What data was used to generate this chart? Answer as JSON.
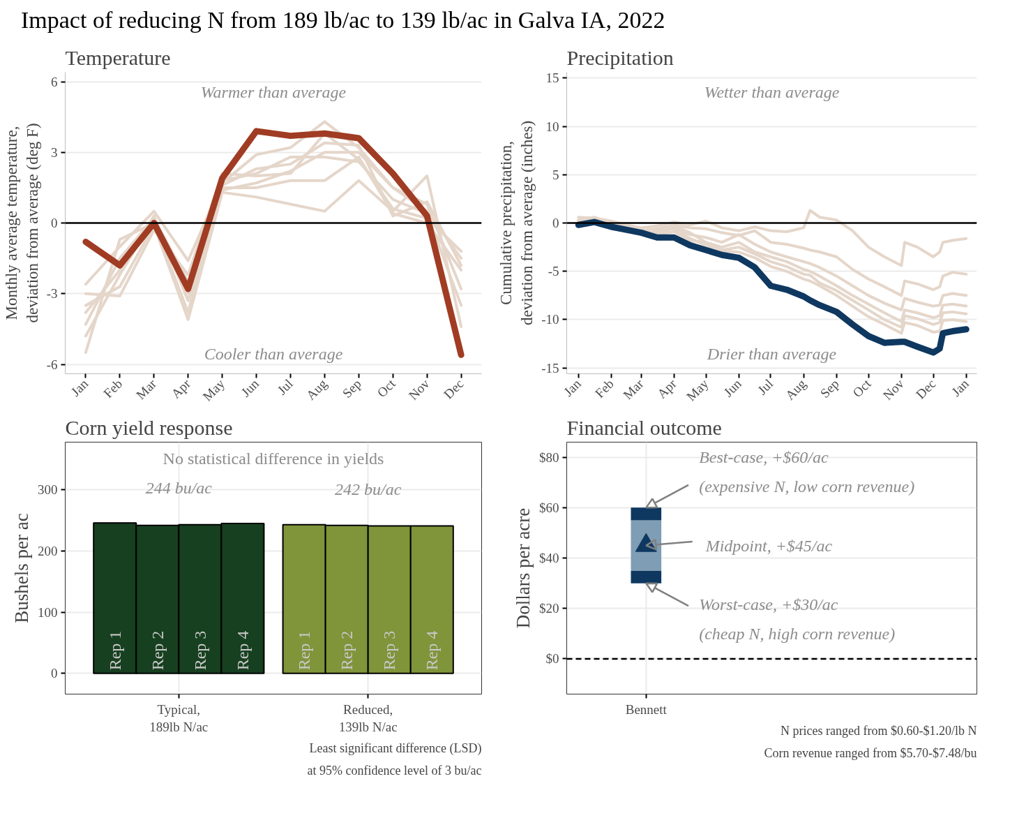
{
  "chart_data": [
    {
      "type": "line",
      "title": "Impact of reducing N from 189 lb/ac to 139 lb/ac in Galva IA, 2022",
      "subtitle": "Temperature",
      "ylabel": "Monthly average temperature,\ndeviation from average (deg F)",
      "categories": [
        "Jan",
        "Feb",
        "Mar",
        "Apr",
        "May",
        "Jun",
        "Jul",
        "Aug",
        "Sep",
        "Oct",
        "Nov",
        "Dec"
      ],
      "series": [
        {
          "color": "#e5d6ca",
          "values": [
            -2.6,
            -1.0,
            0.5,
            -1.6,
            1.7,
            2.9,
            3.2,
            4.3,
            3.2,
            1.5,
            0.5,
            -1.5
          ]
        },
        {
          "color": "#e5d6ca",
          "values": [
            -3.5,
            -2.7,
            -0.1,
            -4.1,
            1.3,
            1.1,
            0.8,
            0.5,
            1.8,
            0.5,
            2.0,
            -4.4
          ]
        },
        {
          "color": "#e5d6ca",
          "values": [
            -4.8,
            -2.2,
            0.2,
            -2.5,
            1.5,
            1.5,
            1.8,
            1.8,
            2.8,
            0.4,
            0.0,
            -2.0
          ]
        },
        {
          "color": "#e5d6ca",
          "values": [
            -5.5,
            -0.7,
            0.0,
            -3.8,
            1.8,
            2.1,
            2.8,
            2.8,
            2.6,
            1.0,
            0.4,
            -3.5
          ]
        },
        {
          "color": "#e5d6ca",
          "values": [
            -3.0,
            -3.1,
            -0.3,
            -2.2,
            2.1,
            2.0,
            2.1,
            3.8,
            2.7,
            0.6,
            0.2,
            -1.2
          ]
        },
        {
          "color": "#e5d6ca",
          "values": [
            -4.3,
            -1.5,
            0.2,
            -3.0,
            1.4,
            1.7,
            2.2,
            3.0,
            3.0,
            1.5,
            0.8,
            -2.8
          ]
        },
        {
          "color": "#e5d6ca",
          "values": [
            -3.8,
            -2.0,
            0.3,
            -3.3,
            1.6,
            2.3,
            2.5,
            3.4,
            3.3,
            0.3,
            0.9,
            -1.8
          ]
        },
        {
          "color": "#a03c23",
          "values": [
            -0.8,
            -1.8,
            0.0,
            -2.8,
            1.9,
            3.9,
            3.7,
            3.8,
            3.6,
            2.1,
            0.3,
            -5.6
          ]
        }
      ],
      "ylim": [
        -6.4,
        6.4
      ],
      "yticks": [
        -6,
        -3,
        0,
        3,
        6
      ],
      "grid": "y",
      "ref_lines": [
        {
          "axis": "y",
          "value": 0,
          "color": "#000000"
        }
      ],
      "annotations": [
        "Warmer than average",
        "Cooler than average"
      ]
    },
    {
      "type": "line",
      "title": "Precipitation",
      "ylabel": "Cumulative precipitation,\ndeviation from average (inches)",
      "x": [
        "2022-01-01",
        "2022-01-16",
        "2022-02-01",
        "2022-02-15",
        "2022-03-01",
        "2022-03-16",
        "2022-04-01",
        "2022-04-16",
        "2022-05-01",
        "2022-05-16",
        "2022-06-01",
        "2022-06-16",
        "2022-07-01",
        "2022-07-16",
        "2022-08-01",
        "2022-08-07",
        "2022-08-16",
        "2022-09-01",
        "2022-09-16",
        "2022-10-01",
        "2022-10-16",
        "2022-11-01",
        "2022-11-04",
        "2022-11-16",
        "2022-12-01",
        "2022-12-07",
        "2022-12-10",
        "2022-12-19",
        "2023-01-01"
      ],
      "series": [
        {
          "color": "#e5d6ca",
          "values": [
            0.6,
            0.5,
            0.2,
            -0.2,
            -0.5,
            -0.3,
            0.1,
            -0.2,
            0.2,
            -0.5,
            -0.8,
            -0.4,
            -0.8,
            -0.9,
            -0.5,
            1.3,
            0.6,
            0.3,
            -0.8,
            -2.5,
            -3.5,
            -4.4,
            -2.0,
            -2.5,
            -3.5,
            -3.0,
            -2.0,
            -1.8,
            -1.6
          ]
        },
        {
          "color": "#e5d6ca",
          "values": [
            0.3,
            0.6,
            0.0,
            -0.5,
            -0.8,
            -0.6,
            -0.2,
            -0.5,
            -0.6,
            -1.0,
            -1.3,
            -0.8,
            -2.0,
            -2.2,
            -2.6,
            -2.8,
            -3.0,
            -3.5,
            -4.8,
            -5.8,
            -6.6,
            -7.5,
            -6.0,
            -6.3,
            -6.9,
            -6.6,
            -5.5,
            -5.1,
            -5.3
          ]
        },
        {
          "color": "#e5d6ca",
          "values": [
            0.2,
            0.3,
            -0.3,
            -0.6,
            -0.9,
            -1.2,
            -0.5,
            -1.2,
            -1.5,
            -2.0,
            -1.2,
            -2.2,
            -3.0,
            -3.5,
            -4.0,
            -4.2,
            -4.6,
            -5.5,
            -6.5,
            -7.5,
            -8.3,
            -9.0,
            -7.8,
            -8.2,
            -8.6,
            -8.5,
            -7.5,
            -7.3,
            -7.5
          ]
        },
        {
          "color": "#e5d6ca",
          "values": [
            0.1,
            0.2,
            -0.4,
            -0.8,
            -1.0,
            -1.0,
            -0.3,
            -1.0,
            -2.0,
            -2.5,
            -2.0,
            -3.0,
            -3.5,
            -4.0,
            -4.8,
            -5.0,
            -5.5,
            -6.5,
            -7.5,
            -8.4,
            -9.3,
            -10.2,
            -9.0,
            -9.3,
            -9.8,
            -9.6,
            -8.5,
            -8.4,
            -8.6
          ]
        },
        {
          "color": "#e5d6ca",
          "values": [
            0.3,
            0.1,
            -0.5,
            -0.9,
            -1.2,
            -0.8,
            -0.6,
            -1.6,
            -2.3,
            -2.8,
            -2.5,
            -3.2,
            -4.0,
            -4.5,
            -5.3,
            -5.4,
            -6.2,
            -7.0,
            -8.0,
            -9.0,
            -10.0,
            -10.8,
            -9.6,
            -9.9,
            -10.5,
            -10.3,
            -9.3,
            -9.2,
            -9.4
          ]
        },
        {
          "color": "#e5d6ca",
          "values": [
            0.2,
            0.2,
            -0.4,
            -0.7,
            -1.1,
            -1.2,
            -0.9,
            -1.8,
            -2.0,
            -2.9,
            -3.0,
            -3.6,
            -4.5,
            -5.0,
            -5.8,
            -6.0,
            -6.5,
            -7.5,
            -8.6,
            -9.7,
            -10.5,
            -11.4,
            -10.3,
            -10.6,
            -11.3,
            -11.2,
            -10.1,
            -10.0,
            -10.2
          ]
        },
        {
          "color": "#0e3860",
          "values": [
            -0.2,
            0.1,
            -0.4,
            -0.7,
            -1.0,
            -1.5,
            -1.5,
            -2.3,
            -2.8,
            -3.3,
            -3.6,
            -4.6,
            -6.5,
            -6.9,
            -7.6,
            -8.0,
            -8.5,
            -9.2,
            -10.5,
            -11.7,
            -12.4,
            -12.3,
            -12.3,
            -12.8,
            -13.4,
            -13.0,
            -11.4,
            -11.2,
            -11.0
          ]
        }
      ],
      "xlim": [
        "2021-12-21",
        "2023-01-11"
      ],
      "xticks": [
        {
          "value": "2022-01-01",
          "label": "Jan"
        },
        {
          "value": "2022-02-01",
          "label": "Feb"
        },
        {
          "value": "2022-03-01",
          "label": "Mar"
        },
        {
          "value": "2022-04-01",
          "label": "Apr"
        },
        {
          "value": "2022-05-01",
          "label": "May"
        },
        {
          "value": "2022-06-01",
          "label": "Jun"
        },
        {
          "value": "2022-07-01",
          "label": "Jul"
        },
        {
          "value": "2022-08-01",
          "label": "Aug"
        },
        {
          "value": "2022-09-01",
          "label": "Sep"
        },
        {
          "value": "2022-10-01",
          "label": "Oct"
        },
        {
          "value": "2022-11-01",
          "label": "Nov"
        },
        {
          "value": "2022-12-01",
          "label": "Dec"
        },
        {
          "value": "2023-01-01",
          "label": "Jan"
        }
      ],
      "ylim": [
        -15.6,
        15.6
      ],
      "yticks": [
        -15,
        -10,
        -5,
        0,
        5,
        10,
        15
      ],
      "grid": "y",
      "ref_lines": [
        {
          "axis": "y",
          "value": 0,
          "color": "#000000"
        }
      ],
      "annotations": [
        "Wetter than average",
        "Drier than average"
      ]
    },
    {
      "type": "bar",
      "title": "Corn yield response",
      "ylabel": "Bushels per ac",
      "categories": [
        "Typical,\n189lb N/ac",
        "Reduced,\n139lb N/ac"
      ],
      "series": [
        {
          "name": "Rep 1",
          "colors": [
            "#174020",
            "#80943a"
          ],
          "values": [
            246,
            243
          ]
        },
        {
          "name": "Rep 2",
          "colors": [
            "#174020",
            "#80943a"
          ],
          "values": [
            242,
            242
          ]
        },
        {
          "name": "Rep 3",
          "colors": [
            "#174020",
            "#80943a"
          ],
          "values": [
            243,
            241
          ]
        },
        {
          "name": "Rep 4",
          "colors": [
            "#174020",
            "#80943a"
          ],
          "values": [
            245,
            241
          ]
        }
      ],
      "ylim": [
        -34,
        378
      ],
      "yticks": [
        0,
        100,
        200,
        300
      ],
      "grid": true,
      "annotations": [
        "No statistical difference in yields",
        "244 bu/ac",
        "242 bu/ac",
        "Least significant difference (LSD)\nat 95% confidence level of 3 bu/ac"
      ]
    },
    {
      "type": "bar",
      "title": "Financial outcome",
      "ylabel": "Dollars per acre",
      "categories": [
        "Bennett"
      ],
      "series": [
        {
          "color": "#0e3860",
          "base": [
            30
          ],
          "values": [
            5
          ]
        },
        {
          "color": "#7f9db4",
          "base": [
            35
          ],
          "values": [
            20
          ]
        },
        {
          "color": "#0e3860",
          "base": [
            55
          ],
          "values": [
            5
          ]
        },
        {
          "type": "scatter",
          "marker": "triangle",
          "color": "#0e3860",
          "x": [
            "Bennett"
          ],
          "values": [
            45
          ]
        }
      ],
      "ylim": [
        -14,
        86
      ],
      "yticks": [
        {
          "value": 0,
          "label": "$0"
        },
        {
          "value": 20,
          "label": "$20"
        },
        {
          "value": 40,
          "label": "$40"
        },
        {
          "value": 60,
          "label": "$60"
        },
        {
          "value": 80,
          "label": "$80"
        }
      ],
      "grid": true,
      "ref_lines": [
        {
          "axis": "y",
          "value": 0,
          "color": "#000000",
          "line_style": "dashed"
        }
      ],
      "annotations": [
        {
          "text": "Best-case, +$60/ac\n   (expensive N, low corn revenue)",
          "x": "Bennett",
          "y": 60
        },
        {
          "text": "Midpoint, +$45/ac",
          "x": "Bennett",
          "y": 45
        },
        {
          "text": "Worst-case, +$30/ac\n   (cheap N,  high corn revenue)",
          "x": "Bennett",
          "y": 30
        },
        "N prices ranged from $0.60-$1.20/lb N\nCorn revenue ranged from $5.70-$7.48/bu"
      ]
    }
  ]
}
